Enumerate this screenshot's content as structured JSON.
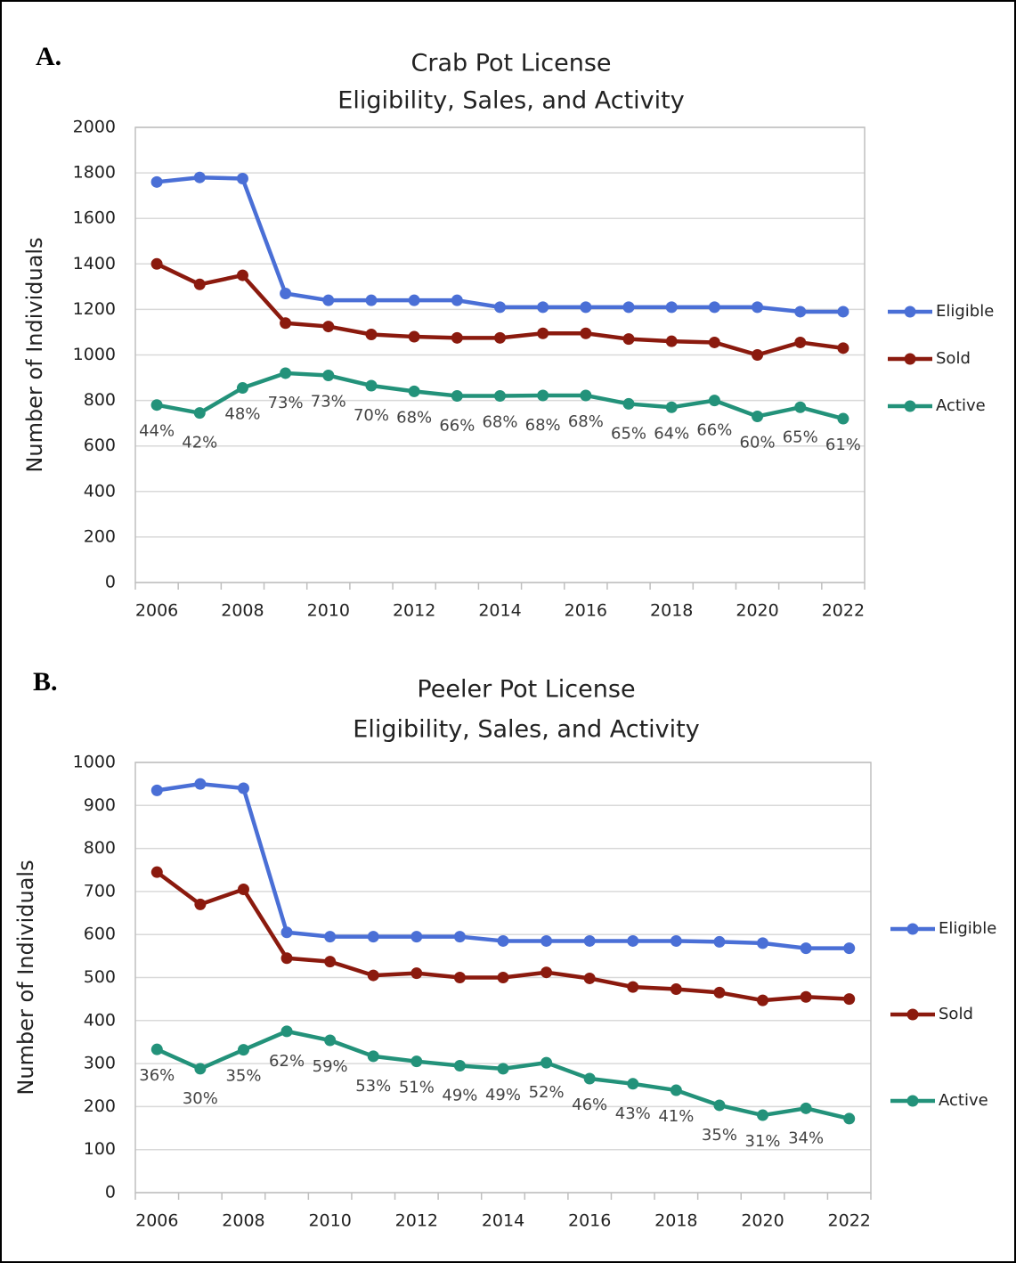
{
  "chart_data": [
    {
      "type": "line",
      "panel_label": "A.",
      "title": "Crab Pot License",
      "subtitle": "Eligibility, Sales, and Activity",
      "y_label": "Number of Individuals",
      "categories": [
        "2006",
        null,
        "2008",
        null,
        "2010",
        null,
        "2012",
        null,
        "2014",
        null,
        "2016",
        null,
        "2018",
        null,
        "2020",
        null,
        "2022"
      ],
      "ylim": [
        0,
        2000
      ],
      "yticks": [
        0,
        200,
        400,
        600,
        800,
        1000,
        1200,
        1400,
        1600,
        1800,
        2000
      ],
      "grid": true,
      "legend": "right",
      "series": [
        {
          "name": "Eligible",
          "color": "#4a6fd6",
          "values": [
            1760,
            1780,
            1775,
            1270,
            1240,
            1240,
            1240,
            1240,
            1210,
            1210,
            1210,
            1210,
            1210,
            1210,
            1210,
            1190,
            1190
          ]
        },
        {
          "name": "Sold",
          "color": "#8b1a0e",
          "values": [
            1400,
            1310,
            1350,
            1140,
            1125,
            1090,
            1080,
            1075,
            1075,
            1095,
            1095,
            1070,
            1060,
            1055,
            1000,
            1055,
            1030
          ]
        },
        {
          "name": "Active",
          "color": "#23927a",
          "values": [
            780,
            745,
            855,
            920,
            910,
            865,
            840,
            820,
            820,
            822,
            822,
            785,
            770,
            800,
            730,
            770,
            720
          ],
          "point_labels": [
            "44%",
            "42%",
            "48%",
            "73%",
            "73%",
            "70%",
            "68%",
            "66%",
            "68%",
            "68%",
            "68%",
            "65%",
            "64%",
            "66%",
            "60%",
            "65%",
            "61%"
          ]
        }
      ]
    },
    {
      "type": "line",
      "panel_label": "B.",
      "title": "Peeler Pot License",
      "subtitle": "Eligibility, Sales, and Activity",
      "y_label": "Number of Individuals",
      "categories": [
        "2006",
        null,
        "2008",
        null,
        "2010",
        null,
        "2012",
        null,
        "2014",
        null,
        "2016",
        null,
        "2018",
        null,
        "2020",
        null,
        "2022"
      ],
      "ylim": [
        0,
        1000
      ],
      "yticks": [
        0,
        100,
        200,
        300,
        400,
        500,
        600,
        700,
        800,
        900,
        1000
      ],
      "grid": true,
      "legend": "right",
      "series": [
        {
          "name": "Eligible",
          "color": "#4a6fd6",
          "values": [
            935,
            950,
            940,
            605,
            595,
            595,
            595,
            595,
            585,
            585,
            585,
            585,
            585,
            583,
            580,
            568,
            568
          ]
        },
        {
          "name": "Sold",
          "color": "#8b1a0e",
          "values": [
            745,
            670,
            705,
            545,
            537,
            505,
            510,
            500,
            500,
            512,
            498,
            478,
            473,
            465,
            447,
            455,
            450
          ]
        },
        {
          "name": "Active",
          "color": "#23927a",
          "values": [
            333,
            288,
            332,
            375,
            354,
            317,
            305,
            295,
            288,
            302,
            265,
            253,
            238,
            203,
            180,
            196,
            172
          ],
          "point_labels": [
            "36%",
            "30%",
            "35%",
            "62%",
            "59%",
            "53%",
            "51%",
            "49%",
            "49%",
            "52%",
            "46%",
            "43%",
            "41%",
            "35%",
            "31%",
            "34%",
            null
          ]
        }
      ]
    }
  ]
}
